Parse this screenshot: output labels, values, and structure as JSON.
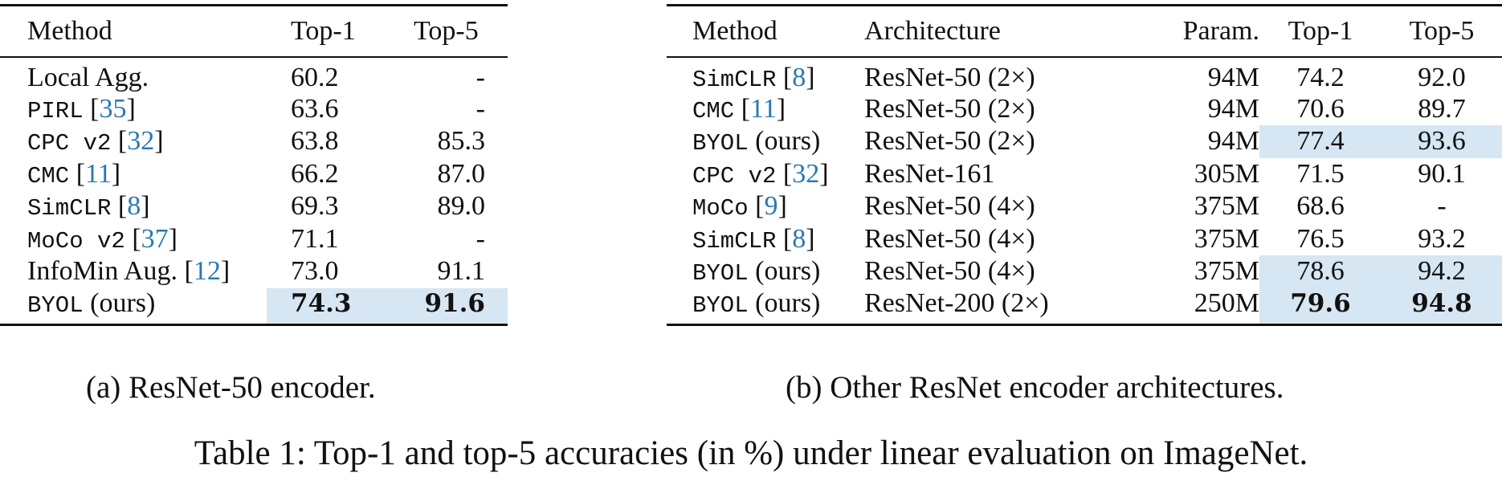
{
  "table_a": {
    "headers": [
      "Method",
      "Top-1",
      "Top-5"
    ],
    "rows": [
      {
        "method": "Local Agg.",
        "mono": false,
        "cite": "",
        "top1": "60.2",
        "top5": "-"
      },
      {
        "method": "PIRL",
        "mono": true,
        "cite": "35",
        "top1": "63.6",
        "top5": "-"
      },
      {
        "method": "CPC v2",
        "mono": true,
        "cite": "32",
        "top1": "63.8",
        "top5": "85.3"
      },
      {
        "method": "CMC",
        "mono": true,
        "cite": "11",
        "top1": "66.2",
        "top5": "87.0"
      },
      {
        "method": "SimCLR",
        "mono": true,
        "cite": "8",
        "top1": "69.3",
        "top5": "89.0"
      },
      {
        "method": "MoCo v2",
        "mono": true,
        "cite": "37",
        "top1": "71.1",
        "top5": "-"
      },
      {
        "method": "InfoMin Aug.",
        "mono": false,
        "cite": "12",
        "top1": "73.0",
        "top5": "91.1"
      },
      {
        "method": "BYOL",
        "mono": true,
        "suffix": "(ours)",
        "cite": "",
        "top1": "74.3",
        "top5": "91.6",
        "highlight": true,
        "bold": true
      }
    ],
    "caption": "(a) ResNet-50 encoder."
  },
  "table_b": {
    "headers": [
      "Method",
      "Architecture",
      "Param.",
      "Top-1",
      "Top-5"
    ],
    "rows": [
      {
        "method": "SimCLR",
        "cite": "8",
        "arch": "ResNet-50 (2×)",
        "param": "94M",
        "top1": "74.2",
        "top5": "92.0"
      },
      {
        "method": "CMC",
        "cite": "11",
        "arch": "ResNet-50 (2×)",
        "param": "94M",
        "top1": "70.6",
        "top5": "89.7"
      },
      {
        "method": "BYOL",
        "suffix": "(ours)",
        "cite": "",
        "arch": "ResNet-50 (2×)",
        "param": "94M",
        "top1": "77.4",
        "top5": "93.6",
        "highlight": true
      },
      {
        "method": "CPC v2",
        "cite": "32",
        "arch": "ResNet-161",
        "param": "305M",
        "top1": "71.5",
        "top5": "90.1"
      },
      {
        "method": "MoCo",
        "cite": "9",
        "arch": "ResNet-50 (4×)",
        "param": "375M",
        "top1": "68.6",
        "top5": "-"
      },
      {
        "method": "SimCLR",
        "cite": "8",
        "arch": "ResNet-50 (4×)",
        "param": "375M",
        "top1": "76.5",
        "top5": "93.2"
      },
      {
        "method": "BYOL",
        "suffix": "(ours)",
        "cite": "",
        "arch": "ResNet-50 (4×)",
        "param": "375M",
        "top1": "78.6",
        "top5": "94.2",
        "highlight": true
      },
      {
        "method": "BYOL",
        "suffix": "(ours)",
        "cite": "",
        "arch": "ResNet-200 (2×)",
        "param": "250M",
        "top1": "79.6",
        "top5": "94.8",
        "highlight": true,
        "bold": true
      }
    ],
    "caption": "(b) Other ResNet encoder architectures."
  },
  "caption": "Table 1: Top-1 and top-5 accuracies (in %) under linear evaluation on ImageNet.",
  "colors": {
    "highlight": "#d6e6f2",
    "citation": "#2878b5"
  }
}
